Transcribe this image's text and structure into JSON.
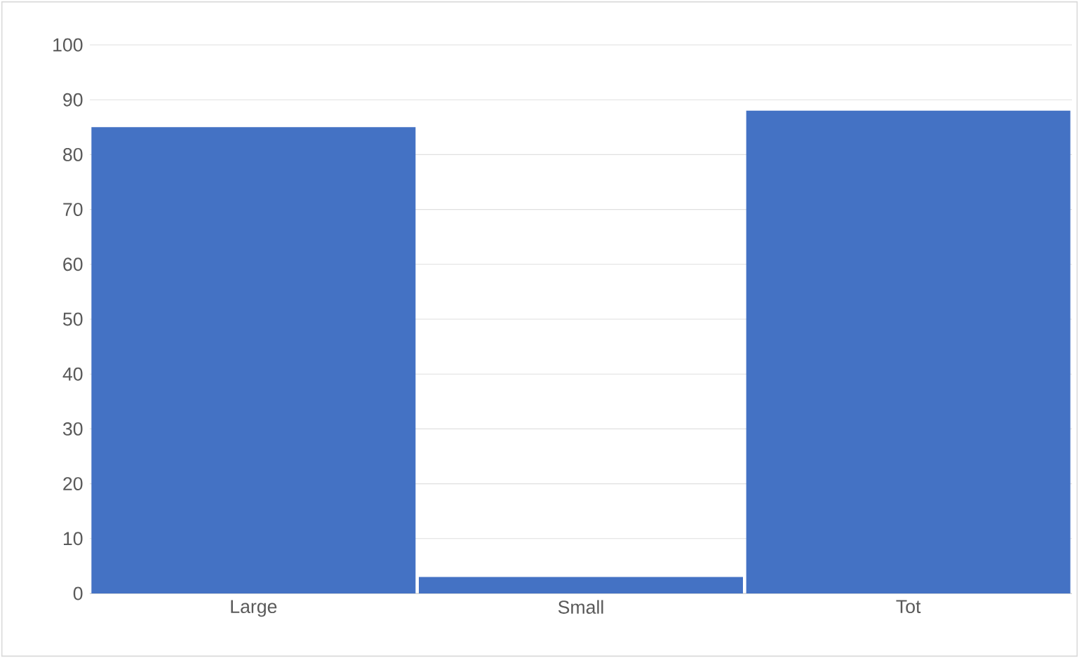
{
  "chart_data": {
    "type": "bar",
    "categories": [
      "Large",
      "Small",
      "Tot"
    ],
    "values": [
      85,
      3,
      88
    ],
    "color": "#4472c4",
    "ylim": [
      0,
      100
    ],
    "yticks": [
      0,
      10,
      20,
      30,
      40,
      50,
      60,
      70,
      80,
      90,
      100
    ],
    "grid": "y"
  }
}
